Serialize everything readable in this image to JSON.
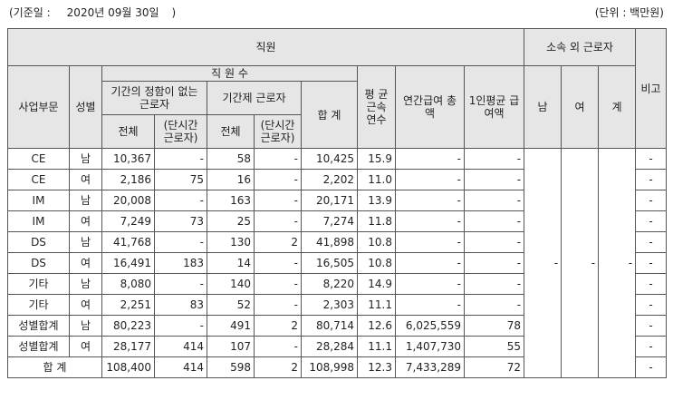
{
  "header": {
    "reference_label": "(기준일 :",
    "reference_date": "2020년 09월 30일",
    "reference_close": ")",
    "unit": "(단위 : 백만원)"
  },
  "columns": {
    "employees": "직원",
    "outsourced": "소속 외 근로자",
    "note": "비고",
    "division": "사업부문",
    "gender": "성별",
    "headcount": "직 원 수",
    "permanent": "기간의 정함이 없는 근로자",
    "fixed_term": "기간제 근로자",
    "total": "합 계",
    "avg_tenure": "평 균 근속 연수",
    "annual_pay": "연간급여 총 액",
    "avg_pay": "1인평균 급여액",
    "male": "남",
    "female": "여",
    "sum": "계",
    "all": "전체",
    "part_time": "(단시간 근로자)"
  },
  "rows": [
    {
      "division": "CE",
      "gender": "남",
      "perm_all": "10,367",
      "perm_part": "-",
      "fixed_all": "58",
      "fixed_part": "-",
      "total": "10,425",
      "tenure": "15.9",
      "annual_pay": "-",
      "avg_pay": "-",
      "note": "-"
    },
    {
      "division": "CE",
      "gender": "여",
      "perm_all": "2,186",
      "perm_part": "75",
      "fixed_all": "16",
      "fixed_part": "-",
      "total": "2,202",
      "tenure": "11.0",
      "annual_pay": "-",
      "avg_pay": "-",
      "note": "-"
    },
    {
      "division": "IM",
      "gender": "남",
      "perm_all": "20,008",
      "perm_part": "-",
      "fixed_all": "163",
      "fixed_part": "-",
      "total": "20,171",
      "tenure": "13.9",
      "annual_pay": "-",
      "avg_pay": "-",
      "note": "-"
    },
    {
      "division": "IM",
      "gender": "여",
      "perm_all": "7,249",
      "perm_part": "73",
      "fixed_all": "25",
      "fixed_part": "-",
      "total": "7,274",
      "tenure": "11.8",
      "annual_pay": "-",
      "avg_pay": "-",
      "note": "-"
    },
    {
      "division": "DS",
      "gender": "남",
      "perm_all": "41,768",
      "perm_part": "-",
      "fixed_all": "130",
      "fixed_part": "2",
      "total": "41,898",
      "tenure": "10.8",
      "annual_pay": "-",
      "avg_pay": "-",
      "note": "-"
    },
    {
      "division": "DS",
      "gender": "여",
      "perm_all": "16,491",
      "perm_part": "183",
      "fixed_all": "14",
      "fixed_part": "-",
      "total": "16,505",
      "tenure": "10.8",
      "annual_pay": "-",
      "avg_pay": "-",
      "note": "-"
    },
    {
      "division": "기타",
      "gender": "남",
      "perm_all": "8,080",
      "perm_part": "-",
      "fixed_all": "140",
      "fixed_part": "-",
      "total": "8,220",
      "tenure": "14.9",
      "annual_pay": "-",
      "avg_pay": "-",
      "note": "-"
    },
    {
      "division": "기타",
      "gender": "여",
      "perm_all": "2,251",
      "perm_part": "83",
      "fixed_all": "52",
      "fixed_part": "-",
      "total": "2,303",
      "tenure": "11.1",
      "annual_pay": "-",
      "avg_pay": "-",
      "note": "-"
    },
    {
      "division": "성별합계",
      "gender": "남",
      "perm_all": "80,223",
      "perm_part": "-",
      "fixed_all": "491",
      "fixed_part": "2",
      "total": "80,714",
      "tenure": "12.6",
      "annual_pay": "6,025,559",
      "avg_pay": "78",
      "note": "-"
    },
    {
      "division": "성별합계",
      "gender": "여",
      "perm_all": "28,177",
      "perm_part": "414",
      "fixed_all": "107",
      "fixed_part": "-",
      "total": "28,284",
      "tenure": "11.1",
      "annual_pay": "1,407,730",
      "avg_pay": "55",
      "note": "-"
    }
  ],
  "grand_total": {
    "label": "합 계",
    "perm_all": "108,400",
    "perm_part": "414",
    "fixed_all": "598",
    "fixed_part": "2",
    "total": "108,998",
    "tenure": "12.3",
    "annual_pay": "7,433,289",
    "avg_pay": "72",
    "note": "-"
  },
  "outsourced_values": {
    "male": "-",
    "female": "-",
    "sum": "-"
  }
}
